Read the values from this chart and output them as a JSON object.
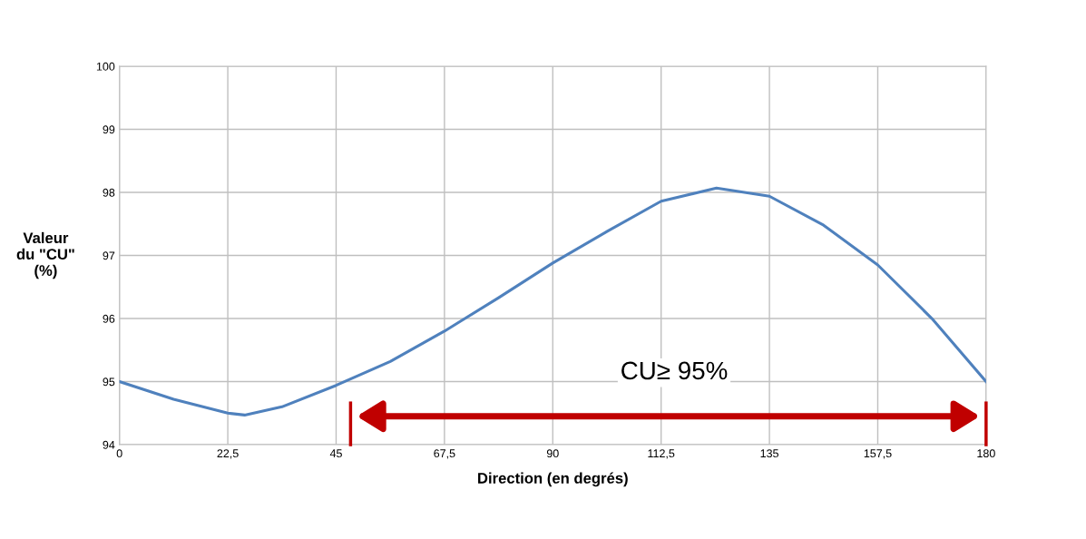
{
  "chart_data": {
    "type": "line",
    "xlabel": "Direction (en degrés)",
    "ylabel": "Valeur\ndu \"CU\"\n(%)",
    "x": [
      0,
      11.25,
      22.5,
      26,
      33.75,
      45,
      56.25,
      67.5,
      78.75,
      90,
      101.25,
      112.5,
      124,
      135,
      146.25,
      157.5,
      168.75,
      180
    ],
    "series": [
      {
        "color": "#4f81bd",
        "values": [
          95.0,
          94.72,
          94.5,
          94.47,
          94.6,
          94.94,
          95.32,
          95.8,
          96.33,
          96.88,
          97.38,
          97.86,
          98.07,
          97.94,
          97.48,
          96.85,
          96.0,
          95.0
        ]
      }
    ],
    "xlim": [
      0,
      180
    ],
    "ylim": [
      94,
      100
    ],
    "xticks": [
      0,
      {
        "value": 22.5,
        "label": "22,5"
      },
      45,
      {
        "value": 67.5,
        "label": "67,5"
      },
      90,
      {
        "value": 112.5,
        "label": "112,5"
      },
      135,
      {
        "value": 157.5,
        "label": "157,5"
      },
      180
    ],
    "yticks": [
      94,
      95,
      96,
      97,
      98,
      99,
      100
    ],
    "grid": true,
    "marker": "none",
    "line_style": "solid",
    "ref_lines": [
      {
        "axis": "x",
        "value": 48,
        "color": "#c00000"
      },
      {
        "axis": "x",
        "value": 180,
        "color": "#c00000"
      }
    ],
    "annotations": [
      "CU≥ 95%"
    ]
  }
}
